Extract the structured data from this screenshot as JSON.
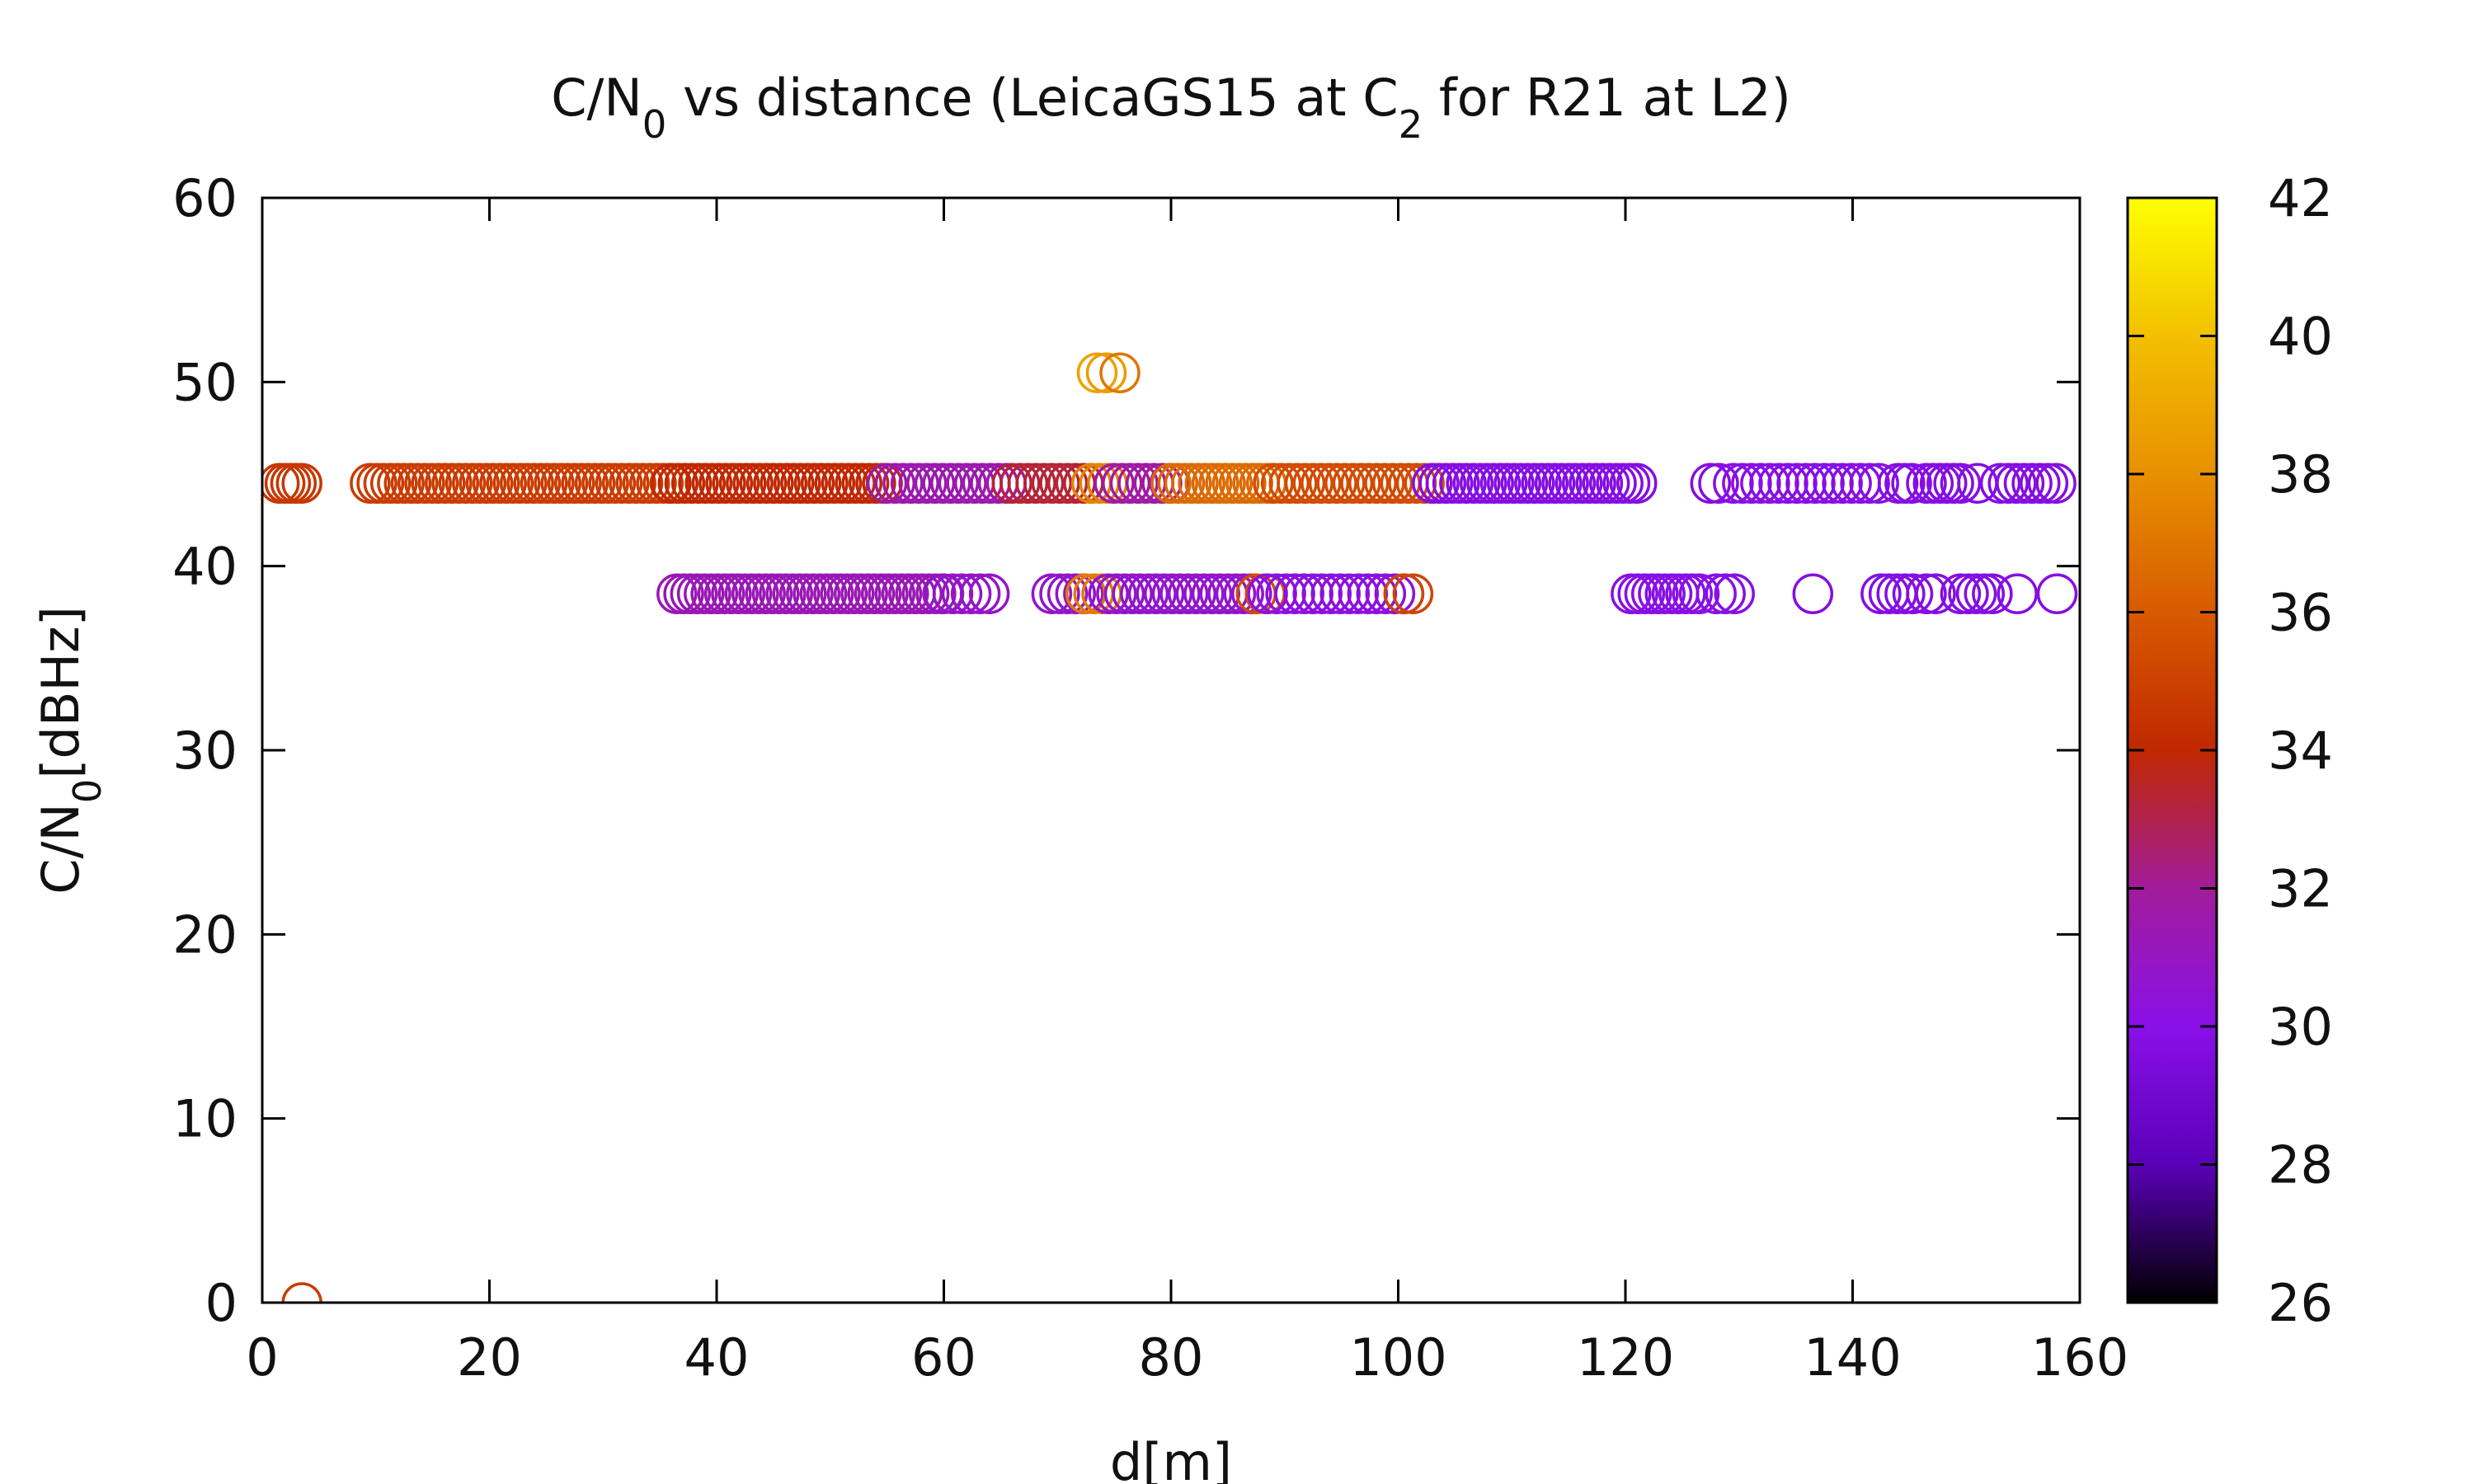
{
  "chart_data": {
    "type": "scatter",
    "title": {
      "parts": [
        {
          "text": "C/N"
        },
        {
          "text": "0",
          "sub": true
        },
        {
          "text": " vs distance (LeicaGS15 at C"
        },
        {
          "text": "2",
          "sub": true
        },
        {
          "text": " for R21 at L2)"
        }
      ]
    },
    "xlabel": "d[m]",
    "ylabel": {
      "parts": [
        {
          "text": "C/N"
        },
        {
          "text": "0",
          "sub": true
        },
        {
          "text": "[dBHz]"
        }
      ]
    },
    "xlim": [
      0,
      160
    ],
    "ylim": [
      0,
      60
    ],
    "xticks": [
      0,
      20,
      40,
      60,
      80,
      100,
      120,
      140,
      160
    ],
    "yticks": [
      0,
      10,
      20,
      30,
      40,
      50,
      60
    ],
    "grid": false,
    "marker": "open-circle",
    "colorbar": {
      "range": [
        26,
        42
      ],
      "ticks": [
        26,
        28,
        30,
        32,
        34,
        36,
        38,
        40,
        42
      ],
      "colormap": [
        "#000000",
        "#5a00b8",
        "#8a10e8",
        "#a11c9a",
        "#c02800",
        "#d85a00",
        "#e89000",
        "#f2c000",
        "#ffff00"
      ]
    },
    "runs": [
      {
        "y": 44.5,
        "c": 34.6,
        "x0": 1.5,
        "x1": 3.5,
        "step": 0.5
      },
      {
        "y": 44.5,
        "c": 34.8,
        "x0": 9.5,
        "x1": 36,
        "step": 0.6
      },
      {
        "y": 44.5,
        "c": 34.0,
        "x0": 36,
        "x1": 55,
        "step": 0.6
      },
      {
        "y": 44.5,
        "c": 31.5,
        "x0": 55,
        "x1": 66,
        "step": 0.7
      },
      {
        "y": 44.5,
        "c": 33.3,
        "x0": 66,
        "x1": 73,
        "step": 0.7
      },
      {
        "y": 44.5,
        "c": 37.5,
        "x0": 73,
        "x1": 75,
        "step": 0.7
      },
      {
        "y": 44.5,
        "c": 31.8,
        "x0": 75,
        "x1": 80,
        "step": 0.7
      },
      {
        "y": 44.5,
        "c": 36.6,
        "x0": 80,
        "x1": 89,
        "step": 0.6
      },
      {
        "y": 44.5,
        "c": 35.4,
        "x0": 89,
        "x1": 103,
        "step": 0.7
      },
      {
        "y": 44.5,
        "c": 29.8,
        "x0": 103,
        "x1": 121,
        "step": 0.6
      },
      {
        "y": 44.5,
        "c": 29.8,
        "x0": 127.5,
        "x1": 128.2,
        "step": 0.7
      },
      {
        "y": 44.5,
        "c": 29.9,
        "x0": 129.5,
        "x1": 142.5,
        "step": 0.8
      },
      {
        "y": 44.5,
        "c": 29.8,
        "x0": 144,
        "x1": 145.5,
        "step": 0.6
      },
      {
        "y": 44.5,
        "c": 29.8,
        "x0": 146.5,
        "x1": 149.5,
        "step": 0.6
      },
      {
        "y": 44.5,
        "c": 29.8,
        "x0": 151,
        "x1": 151.2,
        "step": 0.5
      },
      {
        "y": 44.5,
        "c": 29.8,
        "x0": 153,
        "x1": 158,
        "step": 0.7
      },
      {
        "y": 38.5,
        "c": 31.3,
        "x0": 36.5,
        "x1": 60,
        "step": 0.6
      },
      {
        "y": 38.5,
        "c": 30.8,
        "x0": 60,
        "x1": 64.5,
        "step": 0.8
      },
      {
        "y": 38.5,
        "c": 30.8,
        "x0": 69.5,
        "x1": 72.5,
        "step": 0.7
      },
      {
        "y": 38.5,
        "c": 37.2,
        "x0": 72.5,
        "x1": 74.5,
        "step": 0.7
      },
      {
        "y": 38.5,
        "c": 30.7,
        "x0": 74.5,
        "x1": 87.5,
        "step": 0.7
      },
      {
        "y": 38.5,
        "c": 35.5,
        "x0": 87.5,
        "x1": 88.5,
        "step": 0.8
      },
      {
        "y": 38.5,
        "c": 30.2,
        "x0": 88.5,
        "x1": 100.5,
        "step": 0.8
      },
      {
        "y": 38.5,
        "c": 35.2,
        "x0": 100.5,
        "x1": 101.5,
        "step": 0.8
      },
      {
        "y": 38.5,
        "c": 29.9,
        "x0": 120.5,
        "x1": 127,
        "step": 0.6
      },
      {
        "y": 38.5,
        "c": 29.9,
        "x0": 128,
        "x1": 130,
        "step": 0.8
      },
      {
        "y": 38.5,
        "c": 29.8,
        "x0": 136.5,
        "x1": 136.6,
        "step": 0.5
      },
      {
        "y": 38.5,
        "c": 29.8,
        "x0": 142.5,
        "x1": 145.5,
        "step": 0.7
      },
      {
        "y": 38.5,
        "c": 29.8,
        "x0": 146.5,
        "x1": 147.5,
        "step": 0.8
      },
      {
        "y": 38.5,
        "c": 29.8,
        "x0": 149.5,
        "x1": 152.5,
        "step": 0.7
      },
      {
        "y": 38.5,
        "c": 29.8,
        "x0": 154.5,
        "x1": 154.6,
        "step": 0.5
      },
      {
        "y": 38.5,
        "c": 29.8,
        "x0": 158,
        "x1": 158.1,
        "step": 0.5
      }
    ],
    "points": [
      {
        "x": 3.5,
        "y": 0,
        "c": 34.8
      },
      {
        "x": 73.5,
        "y": 50.5,
        "c": 38.8
      },
      {
        "x": 74.3,
        "y": 50.5,
        "c": 38.5
      },
      {
        "x": 75.5,
        "y": 50.5,
        "c": 37.0
      }
    ]
  }
}
